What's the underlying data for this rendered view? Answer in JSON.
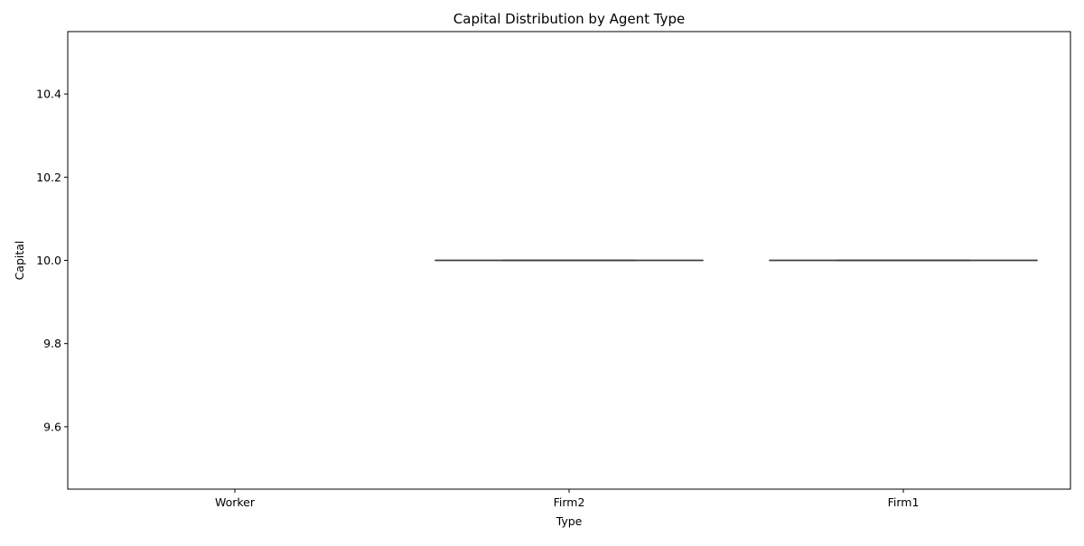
{
  "chart_data": {
    "type": "box",
    "title": "Capital Distribution by Agent Type",
    "xlabel": "Type",
    "ylabel": "Capital",
    "categories": [
      "Worker",
      "Firm2",
      "Firm1"
    ],
    "boxes": [
      {
        "category": "Worker",
        "present": false
      },
      {
        "category": "Firm2",
        "present": true,
        "min": 10.0,
        "q1": 10.0,
        "median": 10.0,
        "q3": 10.0,
        "max": 10.0
      },
      {
        "category": "Firm1",
        "present": true,
        "min": 10.0,
        "q1": 10.0,
        "median": 10.0,
        "q3": 10.0,
        "max": 10.0
      }
    ],
    "ylim": [
      9.45,
      10.55
    ],
    "yticks": [
      9.6,
      9.8,
      10.0,
      10.2,
      10.4
    ],
    "ytick_labels": [
      "9.6",
      "9.8",
      "10.0",
      "10.2",
      "10.4"
    ],
    "grid": false,
    "colors": {
      "box_line": "#3f3f3f",
      "axes": "#000000"
    }
  }
}
